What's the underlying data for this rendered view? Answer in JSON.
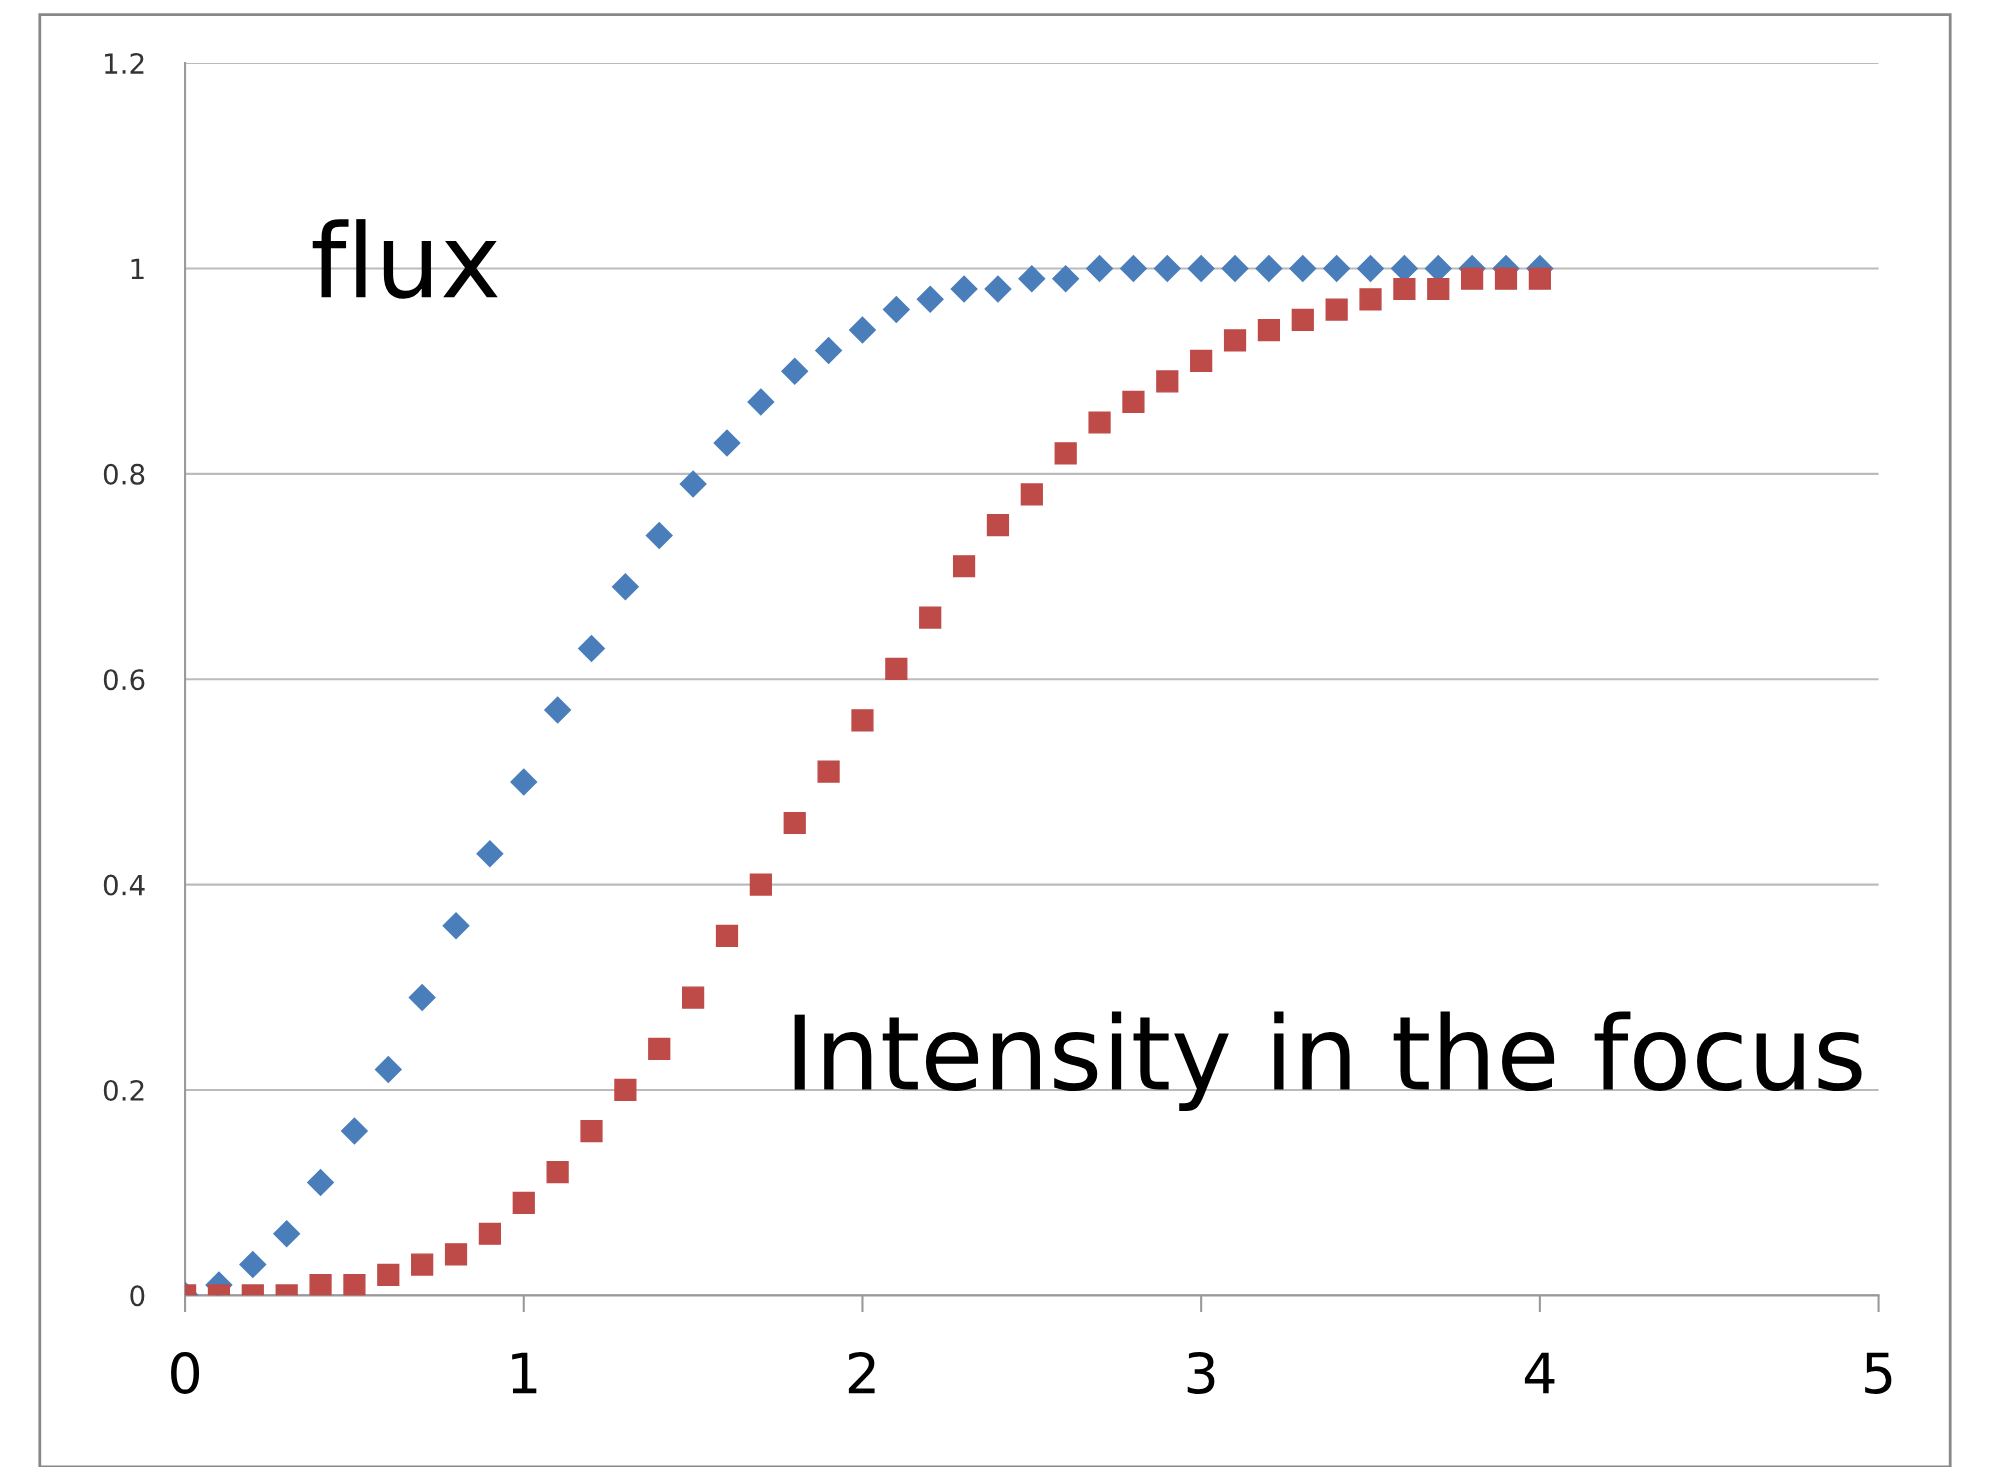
{
  "chart_data": {
    "type": "scatter",
    "xlim": [
      0,
      5
    ],
    "xticks": [
      0,
      1,
      2,
      3,
      4,
      5
    ],
    "ylim": [
      0,
      1.2
    ],
    "yticks": [
      0,
      0.2,
      0.4,
      0.6,
      0.8,
      1,
      1.2
    ],
    "grid": "y",
    "legend": false,
    "x": [
      0,
      0.1,
      0.2,
      0.3,
      0.4,
      0.5,
      0.6,
      0.7,
      0.8,
      0.9,
      1,
      1.1,
      1.2,
      1.3,
      1.4,
      1.5,
      1.6,
      1.7,
      1.8,
      1.9,
      2,
      2.1,
      2.2,
      2.3,
      2.4,
      2.5,
      2.6,
      2.7,
      2.8,
      2.9,
      3,
      3.1,
      3.2,
      3.3,
      3.4,
      3.5,
      3.6,
      3.7,
      3.8,
      3.9,
      4
    ],
    "series": [
      {
        "name": "flux",
        "color": "#4a7ebb",
        "marker": "diamond",
        "values": [
          0,
          0.01,
          0.03,
          0.06,
          0.11,
          0.16,
          0.22,
          0.29,
          0.36,
          0.43,
          0.5,
          0.57,
          0.63,
          0.69,
          0.74,
          0.79,
          0.83,
          0.87,
          0.9,
          0.92,
          0.94,
          0.96,
          0.97,
          0.98,
          0.98,
          0.99,
          0.99,
          1,
          1,
          1,
          1,
          1,
          1,
          1,
          1,
          1,
          1,
          1,
          1,
          1,
          1
        ]
      },
      {
        "name": "Intensity in the focus",
        "color": "#be4b48",
        "marker": "square",
        "values": [
          0,
          0,
          0,
          0,
          0.01,
          0.01,
          0.02,
          0.03,
          0.04,
          0.06,
          0.09,
          0.12,
          0.16,
          0.2,
          0.24,
          0.29,
          0.35,
          0.4,
          0.46,
          0.51,
          0.56,
          0.61,
          0.66,
          0.71,
          0.75,
          0.78,
          0.82,
          0.85,
          0.87,
          0.89,
          0.91,
          0.93,
          0.94,
          0.95,
          0.96,
          0.97,
          0.98,
          0.98,
          0.99,
          0.99,
          0.99
        ]
      }
    ]
  }
}
